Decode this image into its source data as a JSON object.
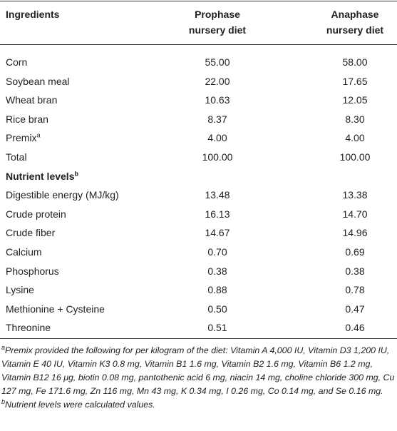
{
  "table": {
    "header": [
      "Ingredients",
      "Prophase nursery diet",
      "Anaphase nursery diet"
    ],
    "rows": [
      {
        "label": "Corn",
        "values": [
          "55.00",
          "58.00"
        ]
      },
      {
        "label": "Soybean meal",
        "values": [
          "22.00",
          "17.65"
        ]
      },
      {
        "label": "Wheat bran",
        "values": [
          "10.63",
          "12.05"
        ]
      },
      {
        "label": "Rice bran",
        "values": [
          "8.37",
          "8.30"
        ]
      },
      {
        "label": "Premix",
        "sup": "a",
        "values": [
          "4.00",
          "4.00"
        ]
      },
      {
        "label": "Total",
        "values": [
          "100.00",
          "100.00"
        ]
      },
      {
        "label": "Nutrient levels",
        "sup": "b",
        "section": true
      },
      {
        "label": "Digestible energy (MJ/kg)",
        "values": [
          "13.48",
          "13.38"
        ]
      },
      {
        "label": "Crude protein",
        "values": [
          "16.13",
          "14.70"
        ]
      },
      {
        "label": "Crude fiber",
        "values": [
          "14.67",
          "14.96"
        ]
      },
      {
        "label": "Calcium",
        "values": [
          "0.70",
          "0.69"
        ]
      },
      {
        "label": "Phosphorus",
        "values": [
          "0.38",
          "0.38"
        ]
      },
      {
        "label": "Lysine",
        "values": [
          "0.88",
          "0.78"
        ]
      },
      {
        "label": "Methionine + Cysteine",
        "values": [
          "0.50",
          "0.47"
        ]
      },
      {
        "label": "Threonine",
        "values": [
          "0.51",
          "0.46"
        ]
      }
    ]
  },
  "footnotes": [
    {
      "mark": "a",
      "text": "Premix provided the following for per kilogram of the diet: Vitamin A 4,000 IU, Vitamin D3 1,200 IU, Vitamin E 40 IU, Vitamin K3 0.8 mg, Vitamin B1 1.6 mg, Vitamin B2 1.6 mg, Vitamin B6 1.2 mg, Vitamin B12 16 μg, biotin 0.08 mg, pantothenic acid 6 mg, niacin 14 mg, choline chloride 300 mg, Cu 127 mg, Fe 171.6 mg, Zn 116 mg, Mn 43 mg, K 0.34 mg, I 0.26 mg, Co 0.14 mg, and Se 0.16 mg."
    },
    {
      "mark": "b",
      "text": "Nutrient levels were calculated values."
    }
  ]
}
